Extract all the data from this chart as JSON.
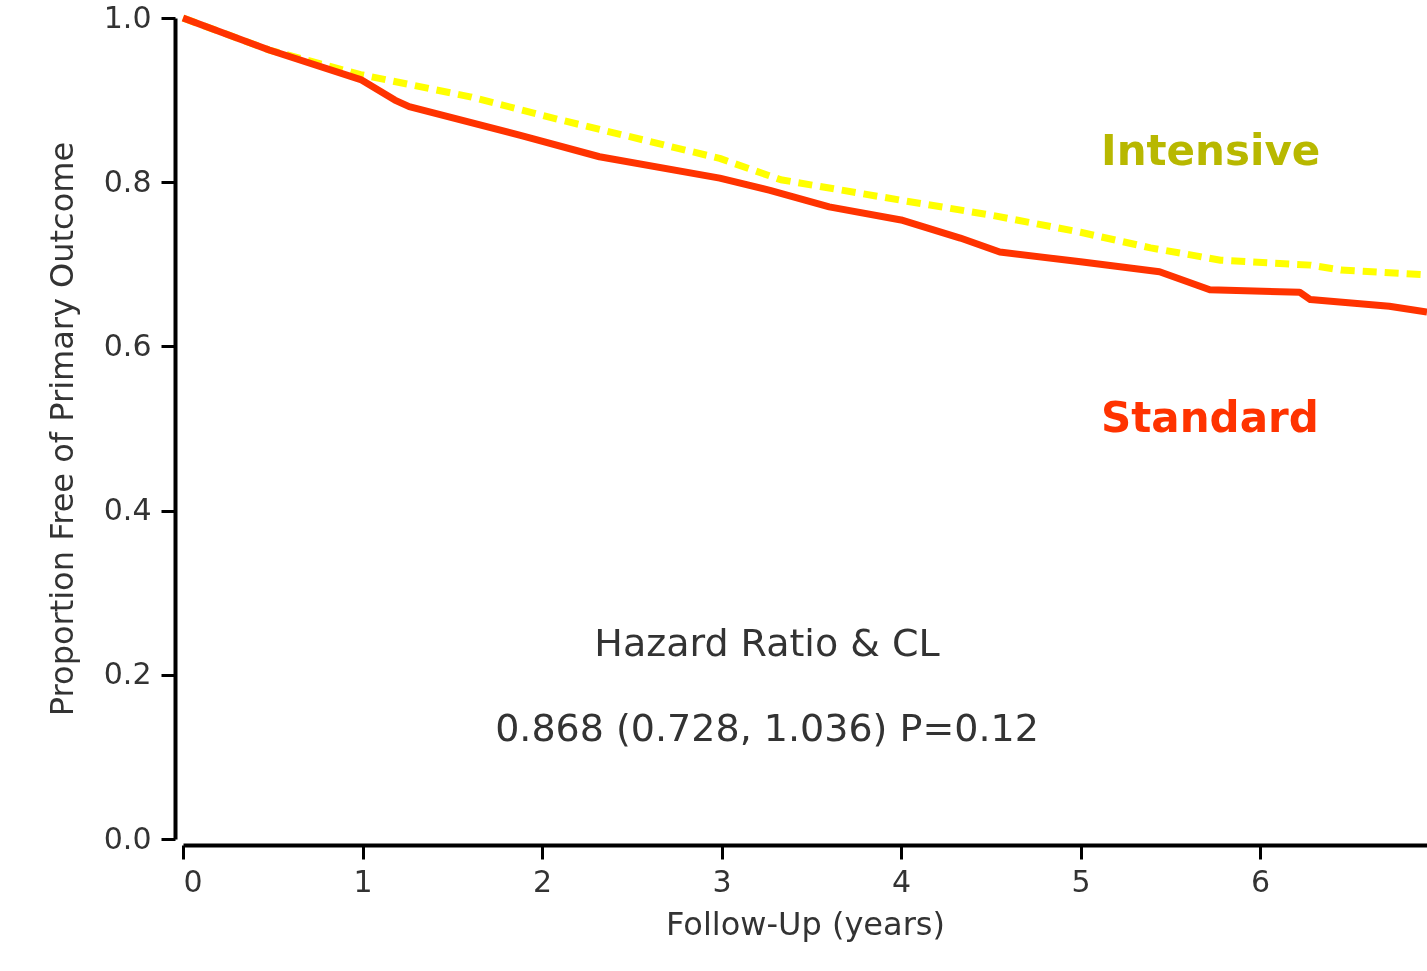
{
  "chart_data": {
    "type": "line",
    "xlabel": "Follow-Up (years)",
    "ylabel": "Proportion Free of Primary Outcome",
    "xlim": [
      0,
      6.93
    ],
    "ylim": [
      0,
      1.0
    ],
    "xticks": [
      0,
      1,
      2,
      3,
      4,
      5,
      6
    ],
    "yticks": [
      {
        "value": 0,
        "label": "0.0"
      },
      0.2,
      0.4,
      0.6,
      0.8,
      {
        "value": 1,
        "label": "1.0"
      }
    ],
    "grid": false,
    "legend": false,
    "marker": "none",
    "annotations": [
      "Hazard Ratio & CL",
      "0.868 (0.728, 1.036) P=0.12"
    ],
    "series": [
      {
        "name": "Intensive",
        "color": "#ffff00",
        "line_style": "dashed",
        "x": [
          0,
          0.48,
          0.99,
          1.6,
          2.1,
          2.99,
          3.33,
          4.0,
          4.5,
          5.0,
          5.39,
          5.78,
          6.28,
          6.45,
          6.93
        ],
        "values": [
          1.0,
          0.961,
          0.931,
          0.904,
          0.876,
          0.829,
          0.803,
          0.778,
          0.76,
          0.739,
          0.72,
          0.705,
          0.699,
          0.693,
          0.687
        ]
      },
      {
        "name": "Standard",
        "color": "#ff3300",
        "line_style": "solid",
        "x": [
          0,
          0.48,
          0.99,
          1.18,
          1.26,
          1.88,
          2.32,
          2.99,
          3.27,
          3.6,
          4.0,
          4.33,
          4.55,
          5.0,
          5.44,
          5.72,
          6.22,
          6.28,
          6.72,
          6.93
        ],
        "values": [
          1.0,
          0.961,
          0.925,
          0.9,
          0.892,
          0.857,
          0.831,
          0.805,
          0.79,
          0.77,
          0.754,
          0.732,
          0.715,
          0.703,
          0.691,
          0.669,
          0.666,
          0.657,
          0.649,
          0.642
        ]
      }
    ]
  }
}
